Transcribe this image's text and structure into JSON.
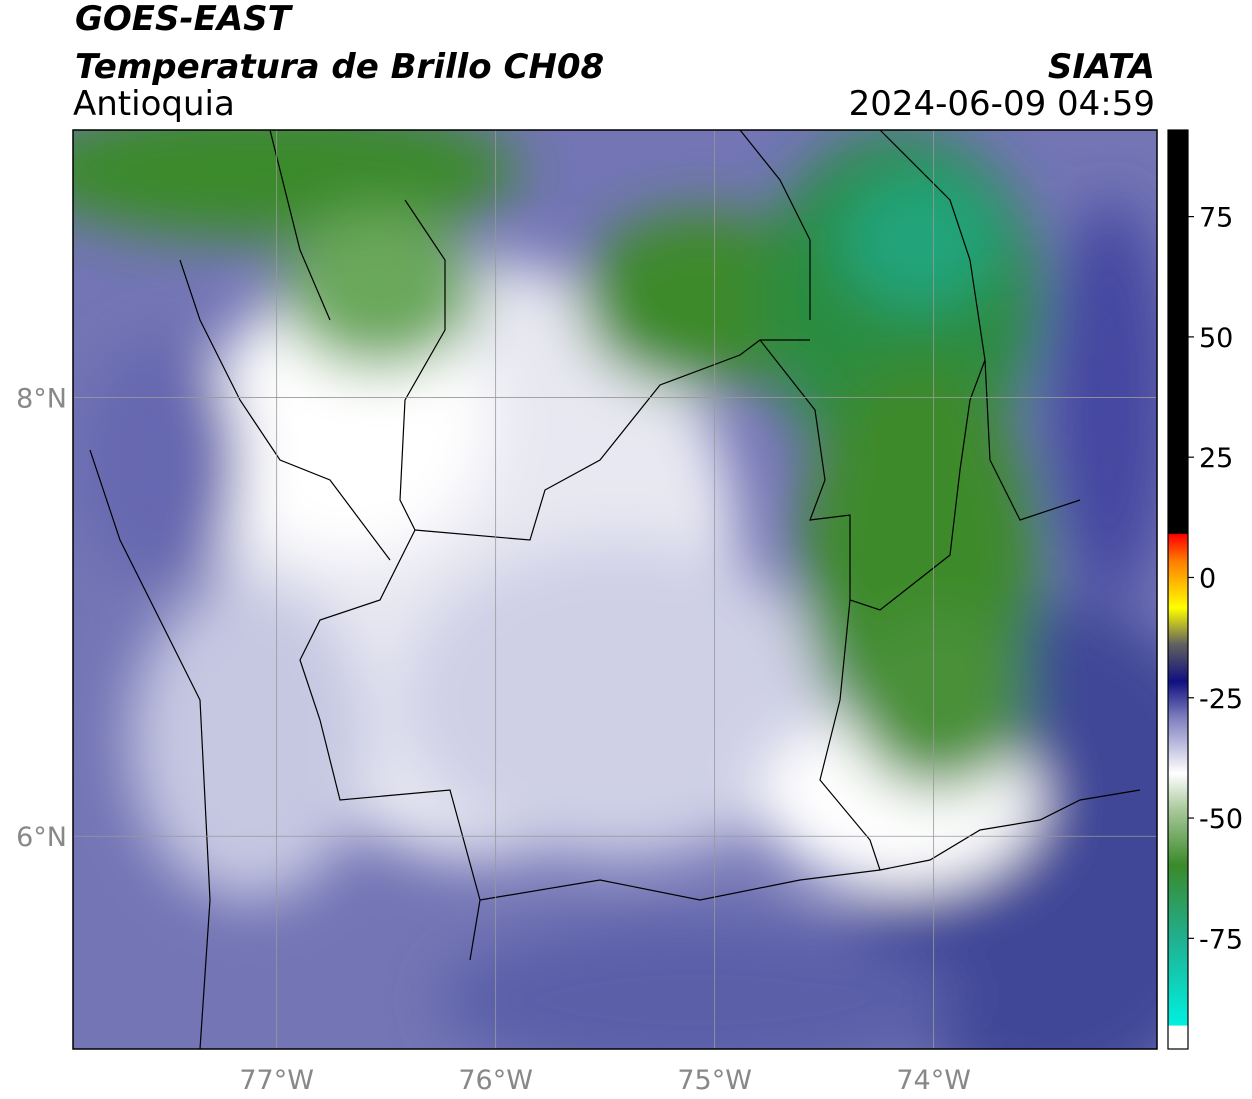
{
  "chart_data": {
    "type": "map",
    "title": "GOES-EAST",
    "subtitle": "Temperatura de Brillo CH08",
    "region": "Antioquia",
    "source": "SIATA",
    "timestamp": "2024-06-09 04:59",
    "xlim": [
      -77.93,
      -72.98
    ],
    "ylim": [
      5.03,
      9.22
    ],
    "xticks": [
      {
        "value": -77,
        "label": "77°W"
      },
      {
        "value": -76,
        "label": "76°W"
      },
      {
        "value": -75,
        "label": "75°W"
      },
      {
        "value": -74,
        "label": "74°W"
      }
    ],
    "yticks": [
      {
        "value": 8,
        "label": "8°N"
      },
      {
        "value": 6,
        "label": "6°N"
      }
    ],
    "grid": true,
    "colorbar": {
      "clim": [
        -98,
        93
      ],
      "ticks": [
        75,
        50,
        25,
        0,
        -25,
        -50,
        -75
      ]
    }
  }
}
